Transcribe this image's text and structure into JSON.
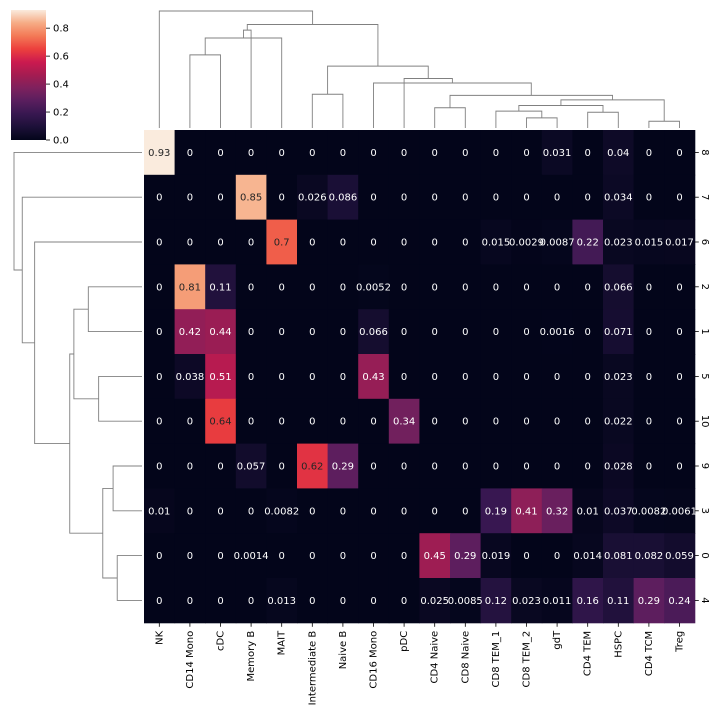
{
  "chart_data": {
    "type": "heatmap",
    "title": "",
    "xlabel": "",
    "ylabel": "",
    "colormap": "rocket",
    "colorbar": {
      "min": 0.0,
      "max": 0.93,
      "ticks": [
        "0.0",
        "0.2",
        "0.4",
        "0.6",
        "0.8"
      ],
      "tick_values": [
        0.0,
        0.2,
        0.4,
        0.6,
        0.8
      ]
    },
    "columns": [
      "NK",
      "CD14 Mono",
      "cDC",
      "Memory B",
      "MAIT",
      "Intermediate B",
      "Naive B",
      "CD16 Mono",
      "pDC",
      "CD4 Naive",
      "CD8 Naive",
      "CD8 TEM_1",
      "CD8 TEM_2",
      "gdT",
      "CD4 TEM",
      "HSPC",
      "CD4 TCM",
      "Treg"
    ],
    "rows": [
      "8",
      "7",
      "6",
      "2",
      "1",
      "5",
      "10",
      "9",
      "3",
      "0",
      "4"
    ],
    "values": [
      [
        0.93,
        0,
        0,
        0,
        0,
        0,
        0,
        0,
        0,
        0,
        0,
        0,
        0,
        0.031,
        0,
        0.04,
        0,
        0
      ],
      [
        0,
        0,
        0,
        0.85,
        0,
        0.026,
        0.086,
        0,
        0,
        0,
        0,
        0,
        0,
        0,
        0,
        0.034,
        0,
        0
      ],
      [
        0,
        0,
        0,
        0,
        0.7,
        0,
        0,
        0,
        0,
        0,
        0,
        0.015,
        0.0029,
        0.0087,
        0.22,
        0.023,
        0.015,
        0.017
      ],
      [
        0,
        0.81,
        0.11,
        0,
        0,
        0,
        0,
        0.0052,
        0,
        0,
        0,
        0,
        0,
        0,
        0,
        0.066,
        0,
        0
      ],
      [
        0,
        0.42,
        0.44,
        0,
        0,
        0,
        0,
        0.066,
        0,
        0,
        0,
        0,
        0,
        0.0016,
        0,
        0.071,
        0,
        0
      ],
      [
        0,
        0.038,
        0.51,
        0,
        0,
        0,
        0,
        0.43,
        0,
        0,
        0,
        0,
        0,
        0,
        0,
        0.023,
        0,
        0
      ],
      [
        0,
        0,
        0.64,
        0,
        0,
        0,
        0,
        0,
        0.34,
        0,
        0,
        0,
        0,
        0,
        0,
        0.022,
        0,
        0
      ],
      [
        0,
        0,
        0,
        0.057,
        0,
        0.62,
        0.29,
        0,
        0,
        0,
        0,
        0,
        0,
        0,
        0,
        0.028,
        0,
        0
      ],
      [
        0.01,
        0,
        0,
        0,
        0.0082,
        0,
        0,
        0,
        0,
        0,
        0,
        0.19,
        0.41,
        0.32,
        0.01,
        0.037,
        0.0082,
        0.0061
      ],
      [
        0,
        0,
        0,
        0.0014,
        0,
        0,
        0,
        0,
        0,
        0.45,
        0.29,
        0.019,
        0,
        0,
        0.014,
        0.081,
        0.082,
        0.059
      ],
      [
        0,
        0,
        0,
        0,
        0.013,
        0,
        0,
        0,
        0,
        0.025,
        0.0085,
        0.12,
        0.023,
        0.011,
        0.16,
        0.11,
        0.29,
        0.24
      ]
    ],
    "annotations": [
      [
        "0.93",
        "0",
        "0",
        "0",
        "0",
        "0",
        "0",
        "0",
        "0",
        "0",
        "0",
        "0",
        "0",
        "0.031",
        "0",
        "0.04",
        "0",
        "0"
      ],
      [
        "0",
        "0",
        "0",
        "0.85",
        "0",
        "0.026",
        "0.086",
        "0",
        "0",
        "0",
        "0",
        "0",
        "0",
        "0",
        "0",
        "0.034",
        "0",
        "0"
      ],
      [
        "0",
        "0",
        "0",
        "0",
        "0.7",
        "0",
        "0",
        "0",
        "0",
        "0",
        "0",
        "0.015",
        "0.0029",
        "0.0087",
        "0.22",
        "0.023",
        "0.015",
        "0.017"
      ],
      [
        "0",
        "0.81",
        "0.11",
        "0",
        "0",
        "0",
        "0",
        "0.0052",
        "0",
        "0",
        "0",
        "0",
        "0",
        "0",
        "0",
        "0.066",
        "0",
        "0"
      ],
      [
        "0",
        "0.42",
        "0.44",
        "0",
        "0",
        "0",
        "0",
        "0.066",
        "0",
        "0",
        "0",
        "0",
        "0",
        "0.0016",
        "0",
        "0.071",
        "0",
        "0"
      ],
      [
        "0",
        "0.038",
        "0.51",
        "0",
        "0",
        "0",
        "0",
        "0.43",
        "0",
        "0",
        "0",
        "0",
        "0",
        "0",
        "0",
        "0.023",
        "0",
        "0"
      ],
      [
        "0",
        "0",
        "0.64",
        "0",
        "0",
        "0",
        "0",
        "0",
        "0.34",
        "0",
        "0",
        "0",
        "0",
        "0",
        "0",
        "0.022",
        "0",
        "0"
      ],
      [
        "0",
        "0",
        "0",
        "0.057",
        "0",
        "0.62",
        "0.29",
        "0",
        "0",
        "0",
        "0",
        "0",
        "0",
        "0",
        "0",
        "0.028",
        "0",
        "0"
      ],
      [
        "0.01",
        "0",
        "0",
        "0",
        "0.0082",
        "0",
        "0",
        "0",
        "0",
        "0",
        "0",
        "0.19",
        "0.41",
        "0.32",
        "0.01",
        "0.037",
        "0.0082",
        "0.0061"
      ],
      [
        "0",
        "0",
        "0",
        "0.0014",
        "0",
        "0",
        "0",
        "0",
        "0",
        "0.45",
        "0.29",
        "0.019",
        "0",
        "0",
        "0.014",
        "0.081",
        "0.082",
        "0.059"
      ],
      [
        "0",
        "0",
        "0",
        "0",
        "0.013",
        "0",
        "0",
        "0",
        "0",
        "0.025",
        "0.0085",
        "0.12",
        "0.023",
        "0.011",
        "0.16",
        "0.11",
        "0.29",
        "0.24"
      ]
    ],
    "column_dendrogram": [
      [
        16,
        17
      ],
      [
        13,
        12
      ],
      [
        15,
        14
      ],
      [
        11,
        19
      ],
      [
        9,
        10
      ],
      [
        20,
        21
      ],
      [
        23,
        18
      ],
      [
        22,
        24
      ],
      [
        5,
        6
      ],
      [
        7,
        25
      ],
      [
        8,
        27
      ],
      [
        26,
        28
      ],
      [
        1,
        2
      ],
      [
        4,
        30
      ],
      [
        3,
        31
      ],
      [
        29,
        32
      ],
      [
        0,
        33
      ]
    ],
    "column_dendrogram_heights": [
      0.06,
      0.09,
      0.14,
      0.15,
      0.18,
      0.2,
      0.25,
      0.29,
      0.3,
      0.4,
      0.44,
      0.55,
      0.65,
      0.8,
      0.87,
      0.92,
      1.04
    ],
    "row_dendrogram": [
      [
        9,
        10
      ],
      [
        7,
        8
      ],
      [
        12,
        11
      ],
      [
        5,
        6
      ],
      [
        3,
        4
      ],
      [
        15,
        14
      ],
      [
        16,
        13
      ],
      [
        2,
        17
      ],
      [
        1,
        18
      ],
      [
        0,
        19
      ]
    ],
    "row_dendrogram_heights": [
      0.12,
      0.14,
      0.19,
      0.21,
      0.26,
      0.33,
      0.35,
      0.52,
      0.58,
      0.62
    ]
  }
}
